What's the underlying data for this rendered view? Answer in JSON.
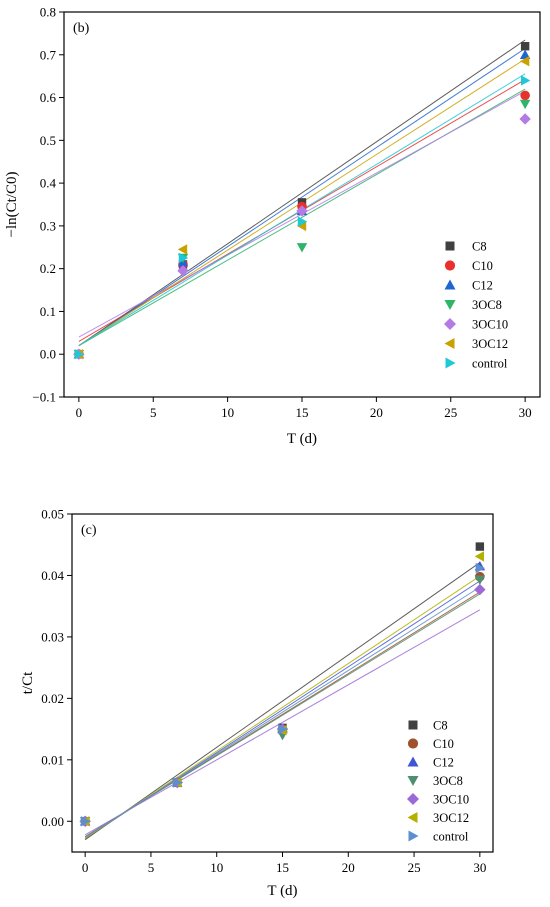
{
  "chart_data": [
    {
      "type": "scatter",
      "panel_label": "(b)",
      "xlabel": "T (d)",
      "ylabel": "−ln(Ct/C0)",
      "xlim": [
        -1,
        31
      ],
      "ylim": [
        -0.1,
        0.8
      ],
      "xticks": [
        0,
        5,
        10,
        15,
        20,
        25,
        30
      ],
      "xtick_labels": [
        "0",
        "5",
        "10",
        "15",
        "20",
        "25",
        "30"
      ],
      "yticks": [
        -0.1,
        0.0,
        0.1,
        0.2,
        0.3,
        0.4,
        0.5,
        0.6,
        0.7,
        0.8
      ],
      "ytick_labels": [
        "−0.1",
        "0.0",
        "0.1",
        "0.2",
        "0.3",
        "0.4",
        "0.5",
        "0.6",
        "0.7",
        "0.8"
      ],
      "grid": false,
      "legend_position": "right",
      "x": [
        0,
        7,
        15,
        30
      ],
      "series": [
        {
          "name": "C8",
          "values": [
            0.0,
            0.21,
            0.355,
            0.72
          ],
          "marker": "square",
          "color": "#404040",
          "fit": [
            0.02,
            0.7146
          ]
        },
        {
          "name": "C10",
          "values": [
            0.0,
            0.21,
            0.345,
            0.605
          ],
          "marker": "circle",
          "color": "#e8312f",
          "fit": [
            0.03,
            0.612
          ]
        },
        {
          "name": "C12",
          "values": [
            0.0,
            0.215,
            0.335,
            0.7
          ],
          "marker": "triangle-up",
          "color": "#1f66d1",
          "fit": [
            0.02,
            0.6947
          ]
        },
        {
          "name": "3OC8",
          "values": [
            0.0,
            0.225,
            0.25,
            0.585
          ],
          "marker": "triangle-down",
          "color": "#2fb56a",
          "fit": [
            0.02,
            0.5998
          ]
        },
        {
          "name": "3OC10",
          "values": [
            0.0,
            0.195,
            0.335,
            0.55
          ],
          "marker": "diamond",
          "color": "#b57be5",
          "fit": [
            0.04,
            0.5752
          ]
        },
        {
          "name": "3OC12",
          "values": [
            0.0,
            0.245,
            0.3,
            0.685
          ],
          "marker": "triangle-left",
          "color": "#c9a200",
          "fit": [
            0.02,
            0.6701
          ]
        },
        {
          "name": "control",
          "values": [
            0.0,
            0.225,
            0.31,
            0.64
          ],
          "marker": "triangle-right",
          "color": "#1ec8d6",
          "fit": [
            0.02,
            0.6354
          ]
        }
      ]
    },
    {
      "type": "scatter",
      "panel_label": "(c)",
      "xlabel": "T (d)",
      "ylabel": "t/Ct",
      "xlim": [
        -1,
        31
      ],
      "ylim": [
        -0.005,
        0.05
      ],
      "xticks": [
        0,
        5,
        10,
        15,
        20,
        25,
        30
      ],
      "xtick_labels": [
        "0",
        "5",
        "10",
        "15",
        "20",
        "25",
        "30"
      ],
      "yticks": [
        0.0,
        0.01,
        0.02,
        0.03,
        0.04,
        0.05
      ],
      "ytick_labels": [
        "0.00",
        "0.01",
        "0.02",
        "0.03",
        "0.04",
        "0.05"
      ],
      "grid": false,
      "legend_position": "bottom-right",
      "x": [
        0,
        7,
        15,
        30
      ],
      "series": [
        {
          "name": "C8",
          "values": [
            0.0,
            0.0063,
            0.0152,
            0.0447
          ],
          "marker": "square",
          "color": "#404040",
          "fit": [
            -0.003,
            0.0451
          ]
        },
        {
          "name": "C10",
          "values": [
            0.0,
            0.0063,
            0.015,
            0.0398
          ],
          "marker": "circle",
          "color": "#a0522d",
          "fit": [
            -0.0025,
            0.0398
          ]
        },
        {
          "name": "C12",
          "values": [
            0.0,
            0.0063,
            0.015,
            0.0415
          ],
          "marker": "triangle-up",
          "color": "#4055d6",
          "fit": [
            -0.0028,
            0.0419
          ]
        },
        {
          "name": "3OC8",
          "values": [
            0.0,
            0.0062,
            0.014,
            0.0393
          ],
          "marker": "triangle-down",
          "color": "#4f8f6f",
          "fit": [
            -0.0025,
            0.0395
          ]
        },
        {
          "name": "3OC10",
          "values": [
            0.0,
            0.0063,
            0.015,
            0.0377
          ],
          "marker": "diamond",
          "color": "#9b6ad6",
          "fit": [
            -0.0022,
            0.0366
          ]
        },
        {
          "name": "3OC12",
          "values": [
            0.0,
            0.0063,
            0.0148,
            0.0431
          ],
          "marker": "triangle-left",
          "color": "#b5b000",
          "fit": [
            -0.0028,
            0.0427
          ]
        },
        {
          "name": "control",
          "values": [
            0.0,
            0.0063,
            0.015,
            0.0412
          ],
          "marker": "triangle-right",
          "color": "#5b8fd0",
          "fit": [
            -0.0026,
            0.0407
          ]
        }
      ]
    }
  ]
}
